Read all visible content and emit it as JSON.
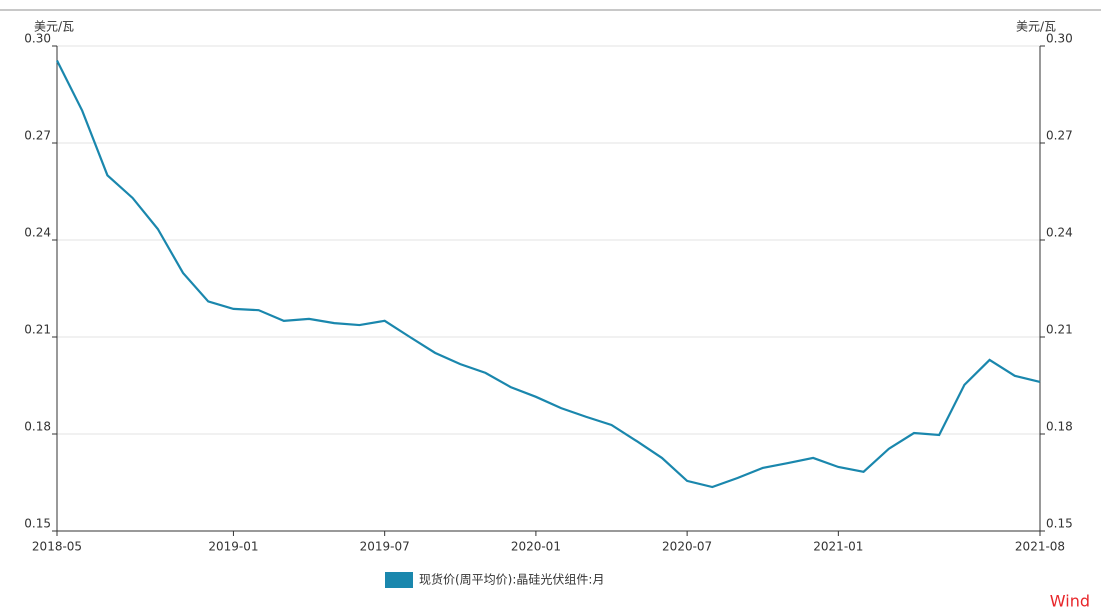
{
  "chart_data": {
    "type": "line",
    "y_label": "美元/瓦",
    "y2_label": "美元/瓦",
    "categories": [
      "2018-05",
      null,
      null,
      null,
      null,
      null,
      null,
      "2019-01",
      null,
      null,
      null,
      null,
      null,
      "2019-07",
      null,
      null,
      null,
      null,
      null,
      "2020-01",
      null,
      null,
      null,
      null,
      null,
      "2020-07",
      null,
      null,
      null,
      null,
      null,
      "2021-01",
      null,
      null,
      null,
      null,
      null,
      null,
      null,
      "2021-08"
    ],
    "series": [
      {
        "name": "现货价(周平均价):晶硅光伏组件:月",
        "color": "#1a87ad",
        "values": [
          0.2955,
          0.28,
          0.26,
          0.253,
          0.2434,
          0.2298,
          0.221,
          0.2187,
          0.2183,
          0.215,
          0.2156,
          0.2143,
          0.2137,
          0.215,
          0.21,
          0.2051,
          0.2016,
          0.1989,
          0.1945,
          0.1915,
          0.188,
          0.1853,
          0.1828,
          0.1778,
          0.1726,
          0.1655,
          0.1636,
          0.1664,
          0.1695,
          0.171,
          0.1726,
          0.1698,
          0.1683,
          0.1754,
          0.1803,
          0.1797,
          0.1952,
          0.2029,
          0.198,
          0.1961
        ]
      }
    ],
    "ylim": [
      0.15,
      0.3
    ],
    "yticks": [
      0.15,
      0.18,
      0.21,
      0.24,
      0.27,
      {
        "value": 0.3,
        "label": "0.30"
      }
    ],
    "y2lim": [
      0.15,
      0.3
    ],
    "y2ticks": [
      0.15,
      0.18,
      0.21,
      0.24,
      0.27,
      {
        "value": 0.3,
        "label": "0.30"
      }
    ],
    "grid": true,
    "legend": "bottom",
    "watermark": "Wind"
  }
}
